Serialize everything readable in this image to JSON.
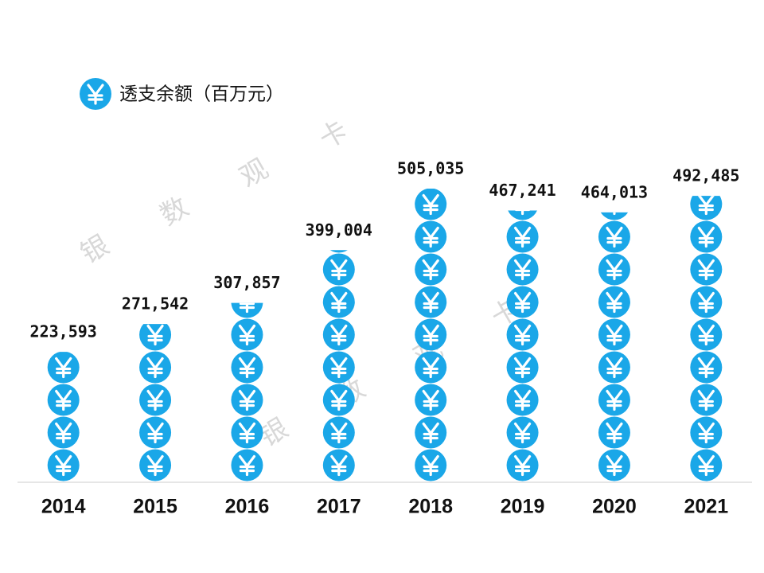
{
  "chart_data": {
    "type": "pictogram",
    "legend": "透支余额（百万元）",
    "color": "#1aa7e8",
    "categories": [
      "2014",
      "2015",
      "2016",
      "2017",
      "2018",
      "2019",
      "2020",
      "2021"
    ],
    "values": [
      223593,
      271542,
      307857,
      399004,
      505035,
      467241,
      464013,
      492485
    ],
    "value_labels": [
      "223,593",
      "271,542",
      "307,857",
      "399,004",
      "505,035",
      "467,241",
      "464,013",
      "492,485"
    ],
    "watermark": [
      "银",
      "数",
      "观",
      "卡"
    ]
  }
}
